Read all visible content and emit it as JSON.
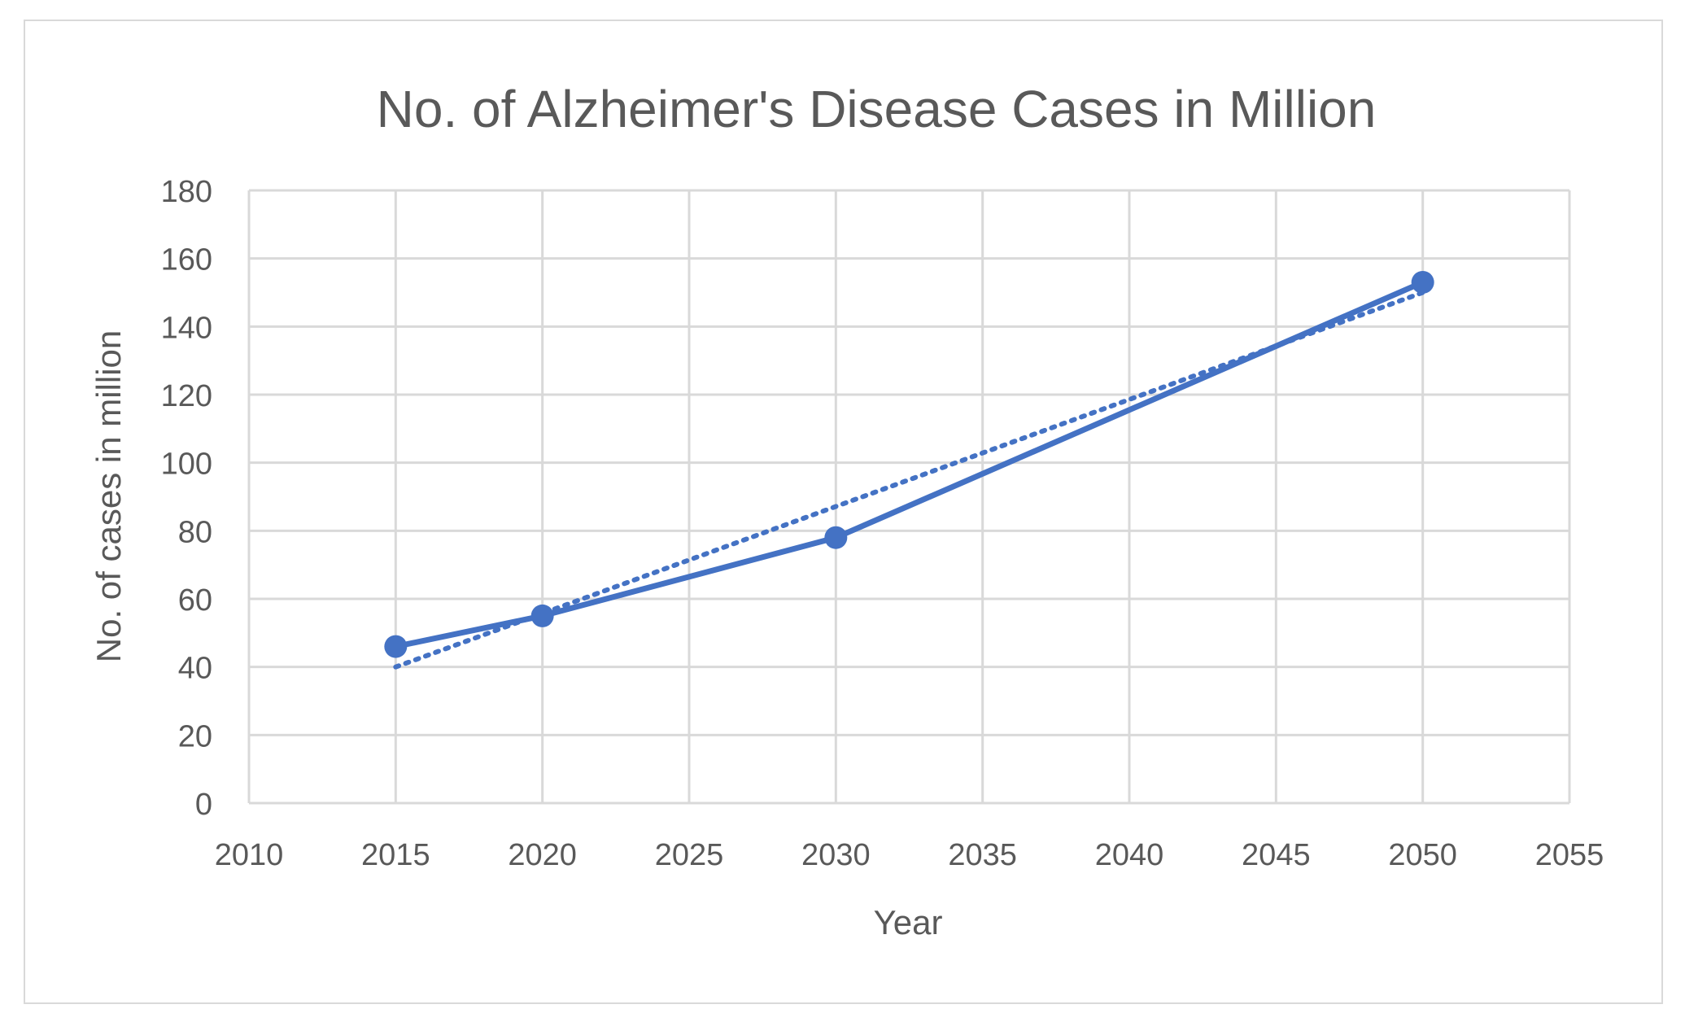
{
  "chart_data": {
    "type": "line",
    "title": "No. of Alzheimer's Disease Cases in Million",
    "xlabel": "Year",
    "ylabel": "No. of cases in million",
    "xlim": [
      2010,
      2055
    ],
    "ylim": [
      0,
      180
    ],
    "xticks": [
      2010,
      2015,
      2020,
      2025,
      2030,
      2035,
      2040,
      2045,
      2050,
      2055
    ],
    "yticks": [
      0,
      20,
      40,
      60,
      80,
      100,
      120,
      140,
      160,
      180
    ],
    "grid": true,
    "legend": "none",
    "series": [
      {
        "x": [
          2015,
          2020,
          2030,
          2050
        ],
        "y": [
          46,
          55,
          78,
          153
        ],
        "color": "#4472c4",
        "style": "solid",
        "markers": true
      }
    ],
    "trendline": {
      "type": "linear",
      "x": [
        2015,
        2050
      ],
      "y": [
        40,
        150
      ],
      "color": "#4472c4",
      "style": "dotted"
    }
  }
}
